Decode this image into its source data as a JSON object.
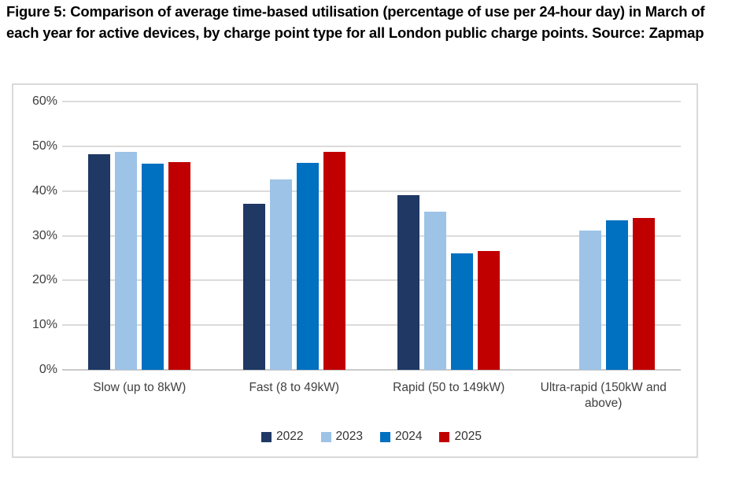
{
  "title": "Figure 5: Comparison of average time-based utilisation (percentage of use per 24-hour day) in March of each year for active devices, by charge point type for all London public charge points. Source: Zapmap",
  "chart_data": {
    "type": "bar",
    "title": "",
    "xlabel": "",
    "ylabel": "",
    "categories": [
      "Slow (up to 8kW)",
      "Fast (8 to 49kW)",
      "Rapid (50 to 149kW)",
      "Ultra-rapid (150kW and above)"
    ],
    "series": [
      {
        "name": "2022",
        "color": "#1F3864",
        "values": [
          48.2,
          37.2,
          39.1,
          null
        ]
      },
      {
        "name": "2023",
        "color": "#9DC3E6",
        "values": [
          48.8,
          42.5,
          35.4,
          31.2
        ]
      },
      {
        "name": "2024",
        "color": "#0070C0",
        "values": [
          46.1,
          46.3,
          26.1,
          33.5
        ]
      },
      {
        "name": "2025",
        "color": "#C00000",
        "values": [
          46.4,
          48.8,
          26.6,
          34.0
        ]
      }
    ],
    "ylim": [
      0,
      60
    ],
    "ytick_step": 10,
    "yticks": [
      "0%",
      "10%",
      "20%",
      "30%",
      "40%",
      "50%",
      "60%"
    ],
    "grid": true,
    "gridline_color": "#DBDBDB",
    "axis_label_color": "#3F3F3F",
    "legend_position": "bottom"
  }
}
